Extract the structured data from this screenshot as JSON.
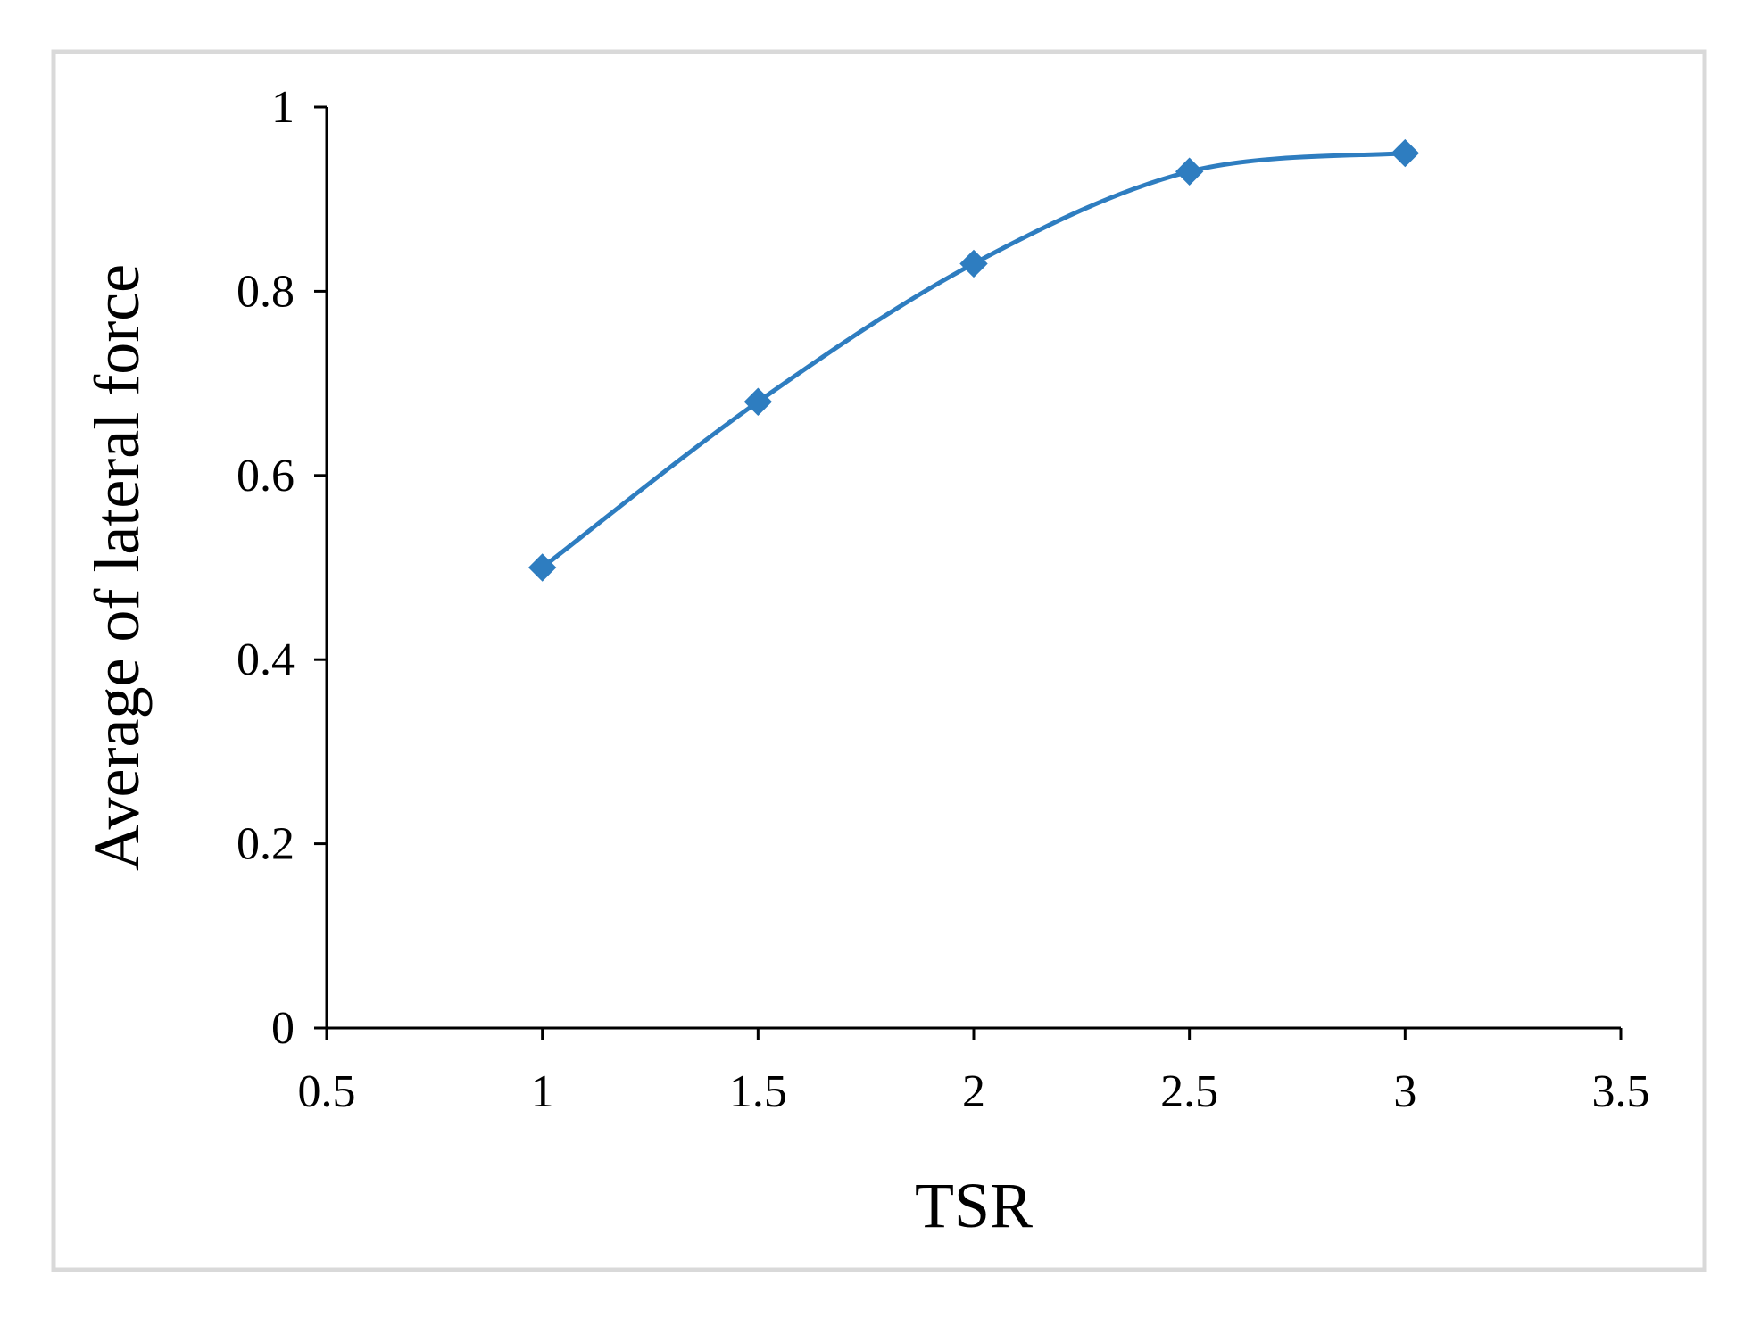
{
  "chart_data": {
    "type": "line",
    "title": "",
    "xlabel": "TSR",
    "ylabel": "Average of lateral force",
    "xlim": [
      0.5,
      3.5
    ],
    "ylim": [
      0,
      1
    ],
    "x_ticks": [
      "0.5",
      "1",
      "1.5",
      "2",
      "2.5",
      "3",
      "3.5"
    ],
    "y_ticks": [
      "0",
      "0.2",
      "0.4",
      "0.6",
      "0.8",
      "1"
    ],
    "grid": false,
    "legend": "none",
    "marker": "diamond",
    "smooth": true,
    "series": [
      {
        "color": "#2e7dc0",
        "x": [
          1,
          1.5,
          2,
          2.5,
          3
        ],
        "y": [
          0.5,
          0.68,
          0.83,
          0.93,
          0.95
        ]
      }
    ]
  }
}
